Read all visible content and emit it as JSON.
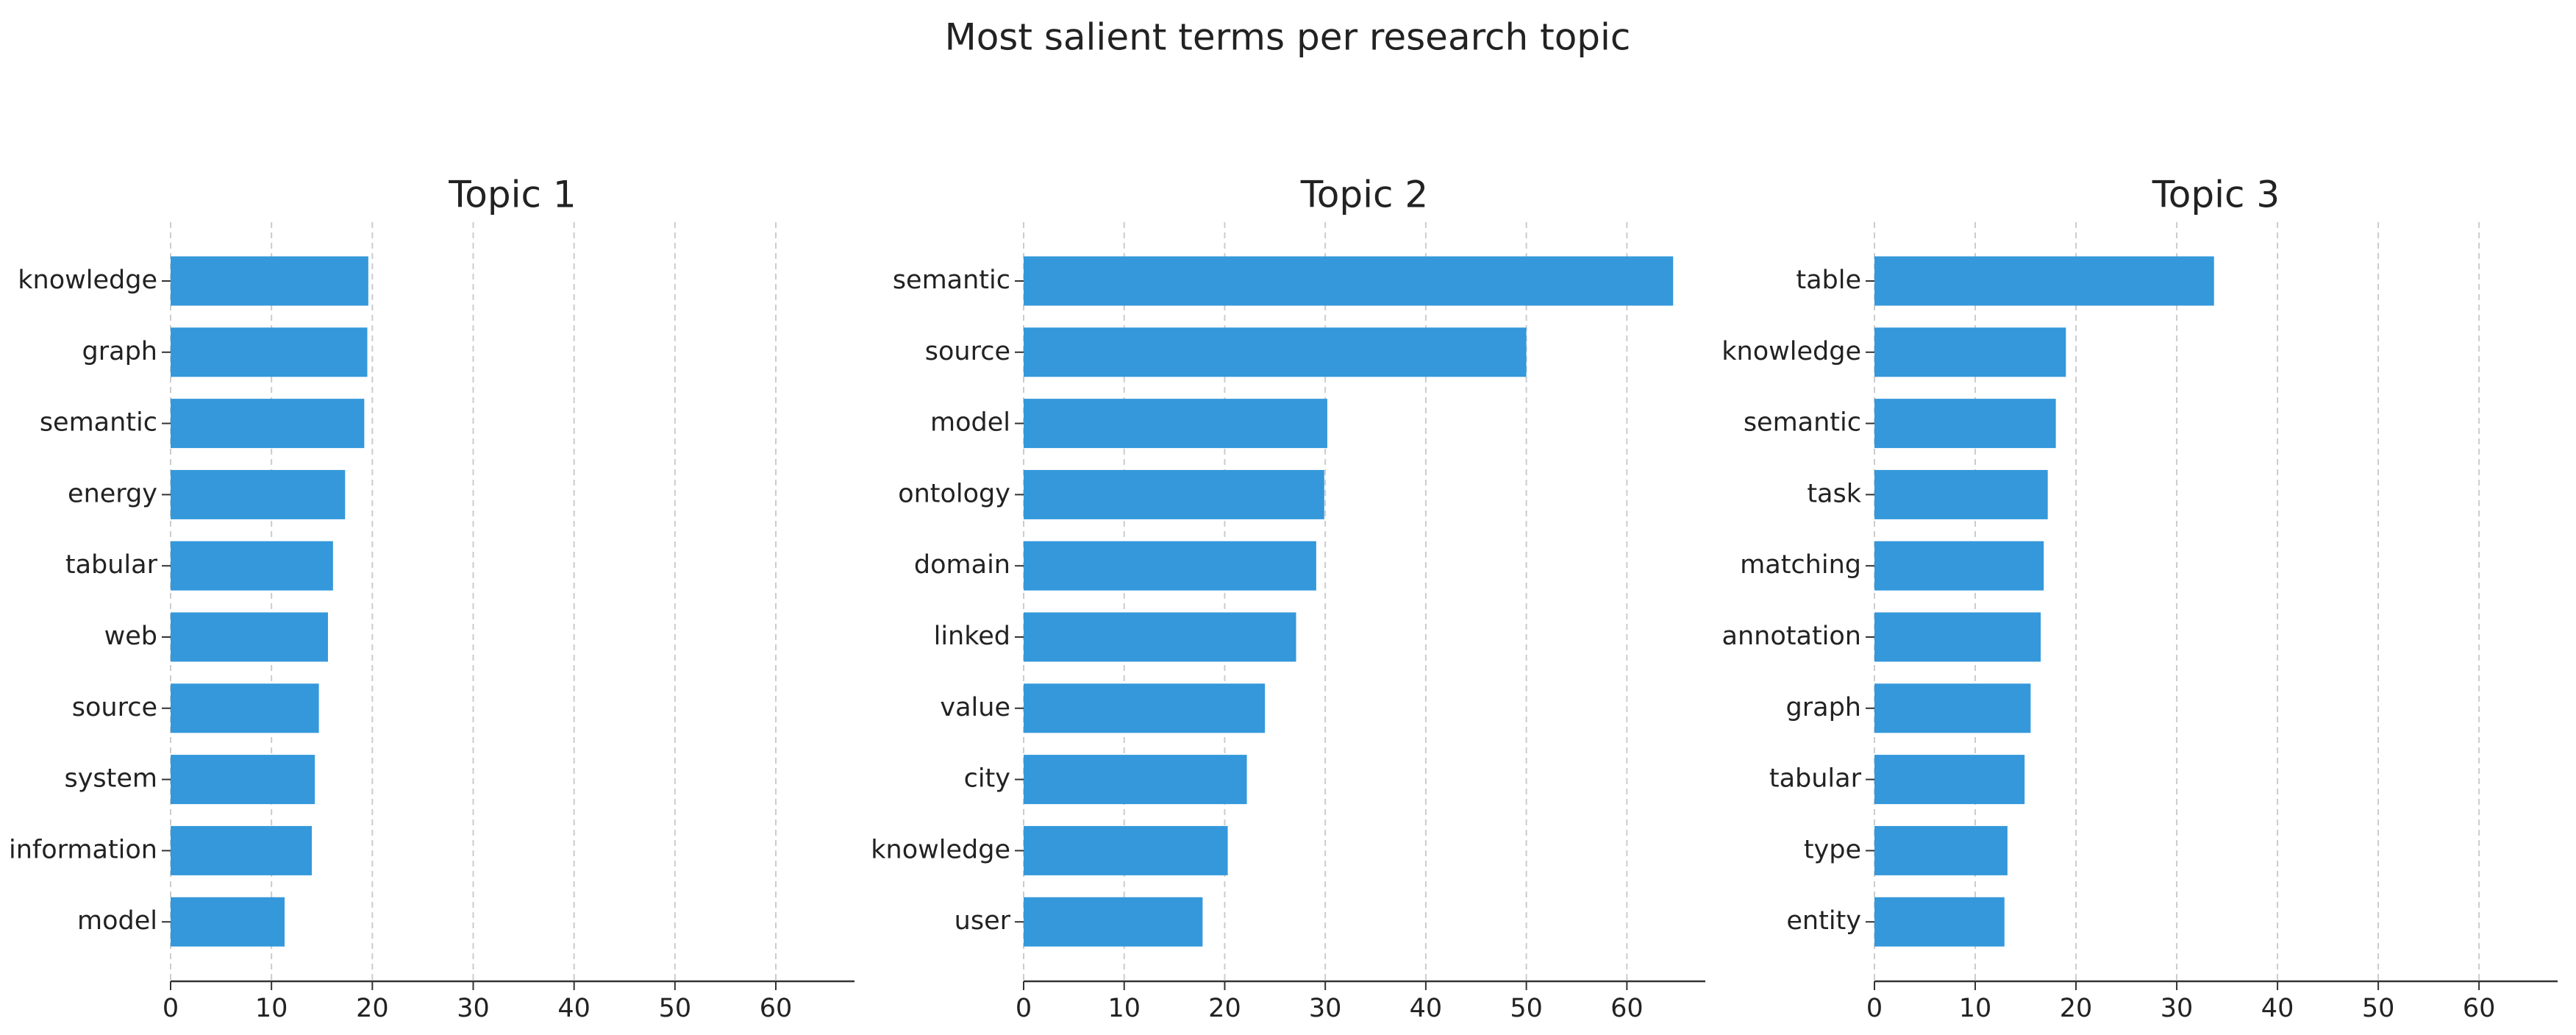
{
  "title": "Most salient terms per research topic",
  "chart_data": [
    {
      "type": "barh",
      "title": "Topic 1",
      "color": "#3498db",
      "grid": true,
      "categories": [
        "knowledge",
        "graph",
        "semantic",
        "energy",
        "tabular",
        "web",
        "source",
        "system",
        "information",
        "model"
      ],
      "values": [
        19.6,
        19.5,
        19.2,
        17.3,
        16.1,
        15.6,
        14.7,
        14.3,
        14.0,
        11.3
      ],
      "xlim": [
        0,
        67.8
      ],
      "xticks": [
        0,
        10,
        20,
        30,
        40,
        50,
        60
      ]
    },
    {
      "type": "barh",
      "title": "Topic 2",
      "color": "#3498db",
      "grid": true,
      "categories": [
        "semantic",
        "source",
        "model",
        "ontology",
        "domain",
        "linked",
        "value",
        "city",
        "knowledge",
        "user"
      ],
      "values": [
        64.6,
        50.0,
        30.2,
        29.9,
        29.1,
        27.1,
        24.0,
        22.2,
        20.3,
        17.8
      ],
      "xlim": [
        0,
        67.8
      ],
      "xticks": [
        0,
        10,
        20,
        30,
        40,
        50,
        60
      ]
    },
    {
      "type": "barh",
      "title": "Topic 3",
      "color": "#3498db",
      "grid": true,
      "categories": [
        "table",
        "knowledge",
        "semantic",
        "task",
        "matching",
        "annotation",
        "graph",
        "tabular",
        "type",
        "entity"
      ],
      "values": [
        33.7,
        19.0,
        18.0,
        17.2,
        16.8,
        16.5,
        15.5,
        14.9,
        13.2,
        12.9
      ],
      "xlim": [
        0,
        67.8
      ],
      "xticks": [
        0,
        10,
        20,
        30,
        40,
        50,
        60
      ]
    }
  ]
}
